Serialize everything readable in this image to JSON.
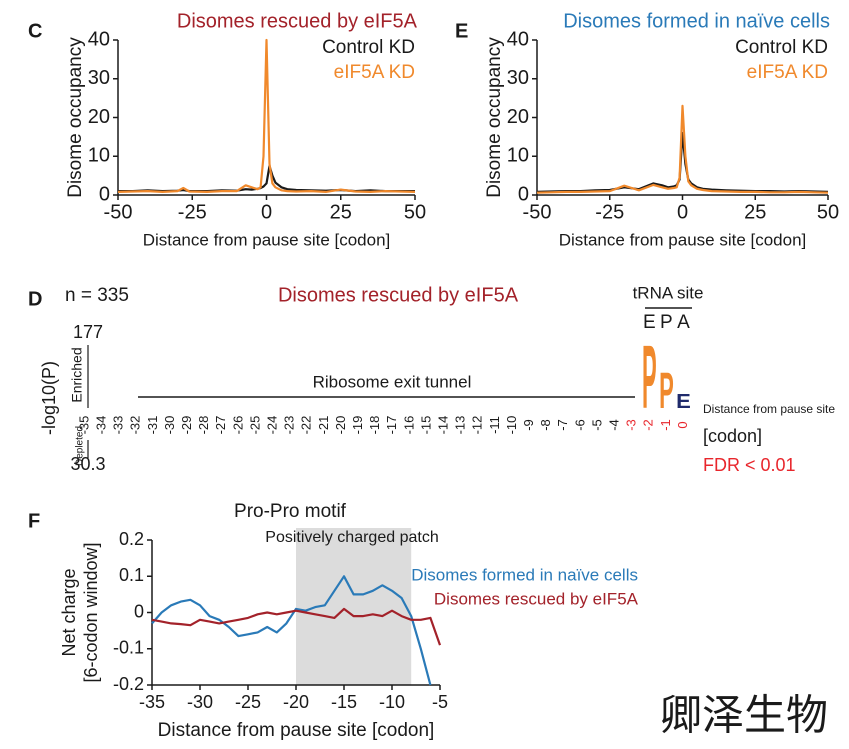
{
  "watermark": "卿泽生物",
  "chart_data": [
    {
      "type": "line",
      "panel": "C",
      "title": "Disomes rescued by eIF5A",
      "title_color": "#a3222a",
      "xlabel": "Distance from pause site [codon]",
      "ylabel": "Disome occupancy",
      "x": [
        -50,
        -45,
        -40,
        -35,
        -30,
        -28,
        -26,
        -20,
        -15,
        -10,
        -7,
        -5,
        -3,
        -2,
        -1,
        0,
        1,
        2,
        3,
        5,
        7,
        10,
        15,
        20,
        25,
        30,
        35,
        40,
        45,
        50
      ],
      "series": [
        {
          "name": "Control KD",
          "color": "#1a1a1a",
          "values": [
            1,
            1,
            1.2,
            1,
            1.1,
            1.3,
            1,
            1,
            1.2,
            1.1,
            1.5,
            1.4,
            1.6,
            1.8,
            2.2,
            3,
            7.5,
            5,
            3.2,
            2,
            1.5,
            1.3,
            1.2,
            1.1,
            1.3,
            1,
            1.2,
            1,
            1,
            1
          ]
        },
        {
          "name": "eIF5A KD",
          "color": "#f0892c",
          "values": [
            0.8,
            0.9,
            1,
            0.8,
            1,
            1.8,
            0.9,
            0.8,
            1,
            1,
            2.5,
            2,
            1.5,
            2,
            10,
            40,
            8,
            3,
            2,
            1.2,
            1,
            0.9,
            1,
            0.8,
            1.4,
            0.9,
            0.8,
            1,
            0.9,
            0.8
          ]
        }
      ],
      "xlim": [
        -50,
        50
      ],
      "xticks": [
        -50,
        -25,
        0,
        25,
        50
      ],
      "ylim": [
        0,
        40
      ],
      "yticks": [
        0,
        10,
        20,
        30,
        40
      ]
    },
    {
      "type": "line",
      "panel": "E",
      "title": "Disomes formed in naïve cells",
      "title_color": "#2a7ab8",
      "xlabel": "Distance from pause site [codon]",
      "ylabel": "Disome occupancy",
      "x": [
        -50,
        -45,
        -40,
        -35,
        -30,
        -25,
        -20,
        -15,
        -10,
        -7,
        -5,
        -3,
        -2,
        -1,
        0,
        1,
        2,
        3,
        5,
        7,
        10,
        15,
        20,
        25,
        30,
        35,
        40,
        45,
        50
      ],
      "series": [
        {
          "name": "Control KD",
          "color": "#1a1a1a",
          "values": [
            0.8,
            0.9,
            1,
            1,
            1.2,
            1.3,
            2,
            1.5,
            3,
            2.5,
            2,
            2.2,
            2.5,
            4,
            16,
            8,
            4,
            3,
            2,
            1.6,
            1.4,
            1.2,
            1.1,
            1,
            1,
            0.9,
            1,
            0.9,
            0.8
          ]
        },
        {
          "name": "eIF5A KD",
          "color": "#f0892c",
          "values": [
            0.6,
            0.7,
            0.8,
            0.8,
            0.9,
            1,
            2.4,
            1.2,
            2.6,
            2,
            1.6,
            1.8,
            2,
            4.5,
            23,
            10,
            3.5,
            2.5,
            1.6,
            1.3,
            1,
            0.9,
            0.8,
            0.8,
            0.7,
            0.7,
            0.8,
            0.7,
            0.6
          ]
        }
      ],
      "xlim": [
        -50,
        50
      ],
      "xticks": [
        -50,
        -25,
        0,
        25,
        50
      ],
      "ylim": [
        0,
        40
      ],
      "yticks": [
        0,
        10,
        20,
        30,
        40
      ]
    },
    {
      "type": "logo",
      "panel": "D",
      "count_label": "n = 335",
      "title": "Disomes rescued by eIF5A",
      "title_color": "#a3222a",
      "site_label": "tRNA site",
      "sites": [
        "E",
        "P",
        "A"
      ],
      "ylabel": "-log10(P)",
      "enriched_label": "Enriched",
      "depleted_label": "Depleted",
      "enriched_max": 177,
      "depleted_max": 30.3,
      "tunnel_label": "Ribosome exit tunnel",
      "xlabel": [
        "Distance from pause site",
        "[codon]"
      ],
      "fdr_label": "FDR < 0.01",
      "highlight_color": "#e8262c",
      "positions": [
        -35,
        -34,
        -33,
        -32,
        -31,
        -30,
        -29,
        -28,
        -27,
        -26,
        -25,
        -24,
        -23,
        -22,
        -21,
        -20,
        -19,
        -18,
        -17,
        -16,
        -15,
        -14,
        -13,
        -12,
        -11,
        -10,
        -9,
        -8,
        -7,
        -6,
        -5,
        -4,
        -3,
        -2,
        -1,
        0
      ],
      "highlight": [
        -3,
        -2,
        -1,
        0
      ],
      "letters": [
        {
          "position": -2,
          "letter": "P",
          "value": 177,
          "color": "#f0892c"
        },
        {
          "position": -1,
          "letter": "P",
          "value": 100,
          "color": "#f0892c"
        },
        {
          "position": 0,
          "letter": "E",
          "value": 40,
          "color": "#1f2a6b"
        }
      ]
    },
    {
      "type": "line",
      "panel": "F",
      "xlabel": "Distance from pause site [codon]",
      "ylabel": [
        "Net charge",
        "[6-codon window]"
      ],
      "annotations": [
        "Pro-Pro motif",
        "Positively charged patch"
      ],
      "shade": [
        -20,
        -8
      ],
      "shade_color": "#dcdcdc",
      "x": [
        -35,
        -34,
        -33,
        -32,
        -31,
        -30,
        -29,
        -28,
        -27,
        -26,
        -25,
        -24,
        -23,
        -22,
        -21,
        -20,
        -19,
        -18,
        -17,
        -16,
        -15,
        -14,
        -13,
        -12,
        -11,
        -10,
        -9,
        -8,
        -7,
        -6,
        -5
      ],
      "series": [
        {
          "name": "Disomes formed in naïve cells",
          "color": "#2a7ab8",
          "values": [
            -0.03,
            0,
            0.02,
            0.03,
            0.035,
            0.02,
            -0.01,
            -0.02,
            -0.04,
            -0.065,
            -0.06,
            -0.055,
            -0.04,
            -0.055,
            -0.03,
            0.01,
            0.005,
            0.015,
            0.02,
            0.06,
            0.1,
            0.05,
            0.05,
            0.06,
            0.075,
            0.06,
            0.04,
            -0.01,
            -0.1,
            -0.2,
            null
          ]
        },
        {
          "name": "Disomes rescued by eIF5A",
          "color": "#a3222a",
          "values": [
            -0.02,
            -0.025,
            -0.03,
            -0.032,
            -0.035,
            -0.02,
            -0.025,
            -0.03,
            -0.025,
            -0.02,
            -0.015,
            -0.005,
            0,
            -0.005,
            0,
            0.005,
            0,
            -0.005,
            -0.01,
            -0.015,
            0.01,
            -0.01,
            -0.01,
            -0.005,
            -0.01,
            0.005,
            -0.01,
            -0.02,
            -0.02,
            -0.015,
            -0.09
          ]
        }
      ],
      "xlim": [
        -35,
        -5
      ],
      "xticks": [
        -35,
        -30,
        -25,
        -20,
        -15,
        -10,
        -5
      ],
      "ylim": [
        -0.2,
        0.2
      ],
      "yticks": [
        -0.2,
        -0.1,
        0,
        0.1,
        0.2
      ]
    }
  ]
}
